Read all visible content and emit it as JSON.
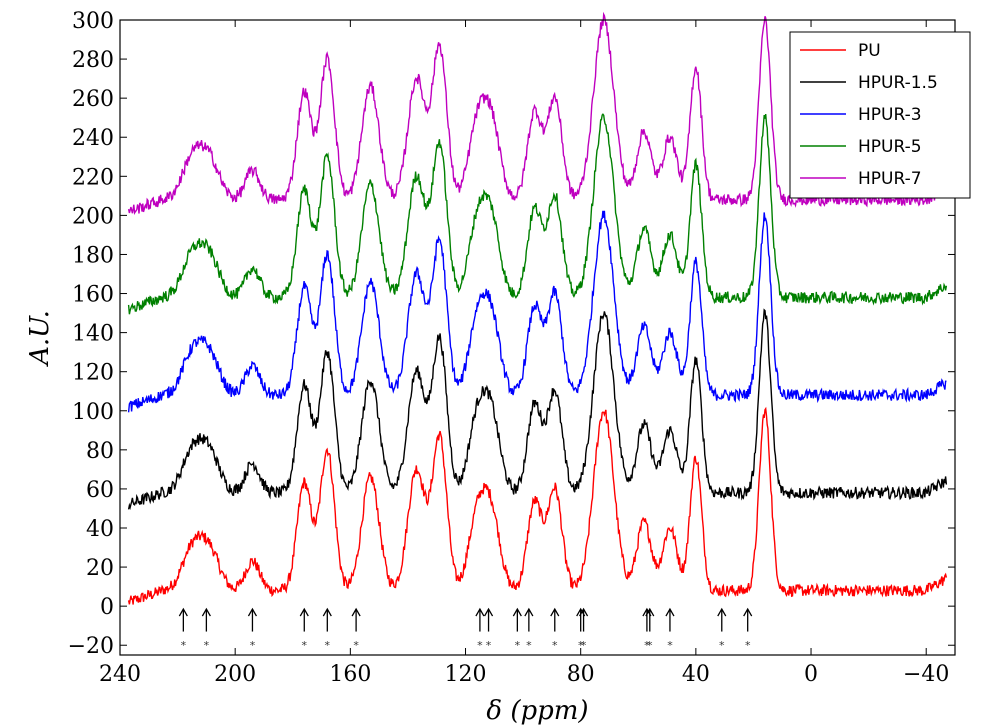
{
  "chart_data": {
    "type": "line",
    "title": "",
    "xlabel": "δ (ppm)",
    "ylabel": "A.U.",
    "xlim": [
      240,
      -50
    ],
    "ylim": [
      -25,
      300
    ],
    "x_reversed": true,
    "xticks": [
      240,
      200,
      160,
      120,
      80,
      40,
      0,
      -40
    ],
    "xtick_labels": [
      "240",
      "200",
      "160",
      "120",
      "80",
      "40",
      "0",
      "−40"
    ],
    "yticks": [
      -20,
      0,
      20,
      40,
      60,
      80,
      100,
      120,
      140,
      160,
      180,
      200,
      220,
      240,
      260,
      280,
      300
    ],
    "ytick_labels": [
      "−20",
      "0",
      "20",
      "40",
      "60",
      "80",
      "100",
      "120",
      "140",
      "160",
      "180",
      "200",
      "220",
      "240",
      "260",
      "280",
      "300"
    ],
    "grid": false,
    "legend_position": "top-right",
    "peaks": [
      {
        "ppm": 215,
        "h": 20,
        "w": 3.5
      },
      {
        "ppm": 209,
        "h": 20,
        "w": 3.5
      },
      {
        "ppm": 194,
        "h": 15,
        "w": 2.5
      },
      {
        "ppm": 176,
        "h": 55,
        "w": 2.5
      },
      {
        "ppm": 168,
        "h": 72,
        "w": 2.5
      },
      {
        "ppm": 153,
        "h": 58,
        "w": 3
      },
      {
        "ppm": 137,
        "h": 62,
        "w": 3
      },
      {
        "ppm": 129,
        "h": 78,
        "w": 2.5
      },
      {
        "ppm": 116,
        "h": 36,
        "w": 3
      },
      {
        "ppm": 111,
        "h": 38,
        "w": 3
      },
      {
        "ppm": 96,
        "h": 45,
        "w": 2.5
      },
      {
        "ppm": 89,
        "h": 52,
        "w": 2.5
      },
      {
        "ppm": 72,
        "h": 92,
        "w": 3.5
      },
      {
        "ppm": 58,
        "h": 35,
        "w": 2.5
      },
      {
        "ppm": 49,
        "h": 32,
        "w": 2.5
      },
      {
        "ppm": 40,
        "h": 68,
        "w": 2
      },
      {
        "ppm": 16,
        "h": 92,
        "w": 2
      }
    ],
    "series": [
      {
        "name": "PU",
        "color": "#ff0000",
        "offset": 0
      },
      {
        "name": "HPUR-1.5",
        "color": "#000000",
        "offset": 50
      },
      {
        "name": "HPUR-3",
        "color": "#0000ff",
        "offset": 100
      },
      {
        "name": "HPUR-5",
        "color": "#008000",
        "offset": 150
      },
      {
        "name": "HPUR-7",
        "color": "#bf00bf",
        "offset": 200
      }
    ],
    "markers": [
      {
        "ppm": 218,
        "label": "*"
      },
      {
        "ppm": 210,
        "label": "*"
      },
      {
        "ppm": 194,
        "label": "*"
      },
      {
        "ppm": 176,
        "label": "*"
      },
      {
        "ppm": 168,
        "label": "*"
      },
      {
        "ppm": 158,
        "label": "*"
      },
      {
        "ppm": 115,
        "label": "*"
      },
      {
        "ppm": 112,
        "label": "*"
      },
      {
        "ppm": 102,
        "label": "*"
      },
      {
        "ppm": 98,
        "label": "*"
      },
      {
        "ppm": 89,
        "label": "*"
      },
      {
        "ppm": 80,
        "label": "*"
      },
      {
        "ppm": 79,
        "label": "*"
      },
      {
        "ppm": 57,
        "label": "*"
      },
      {
        "ppm": 56,
        "label": "*"
      },
      {
        "ppm": 49,
        "label": "*"
      },
      {
        "ppm": 31,
        "label": "*"
      },
      {
        "ppm": 22,
        "label": "*"
      }
    ]
  }
}
